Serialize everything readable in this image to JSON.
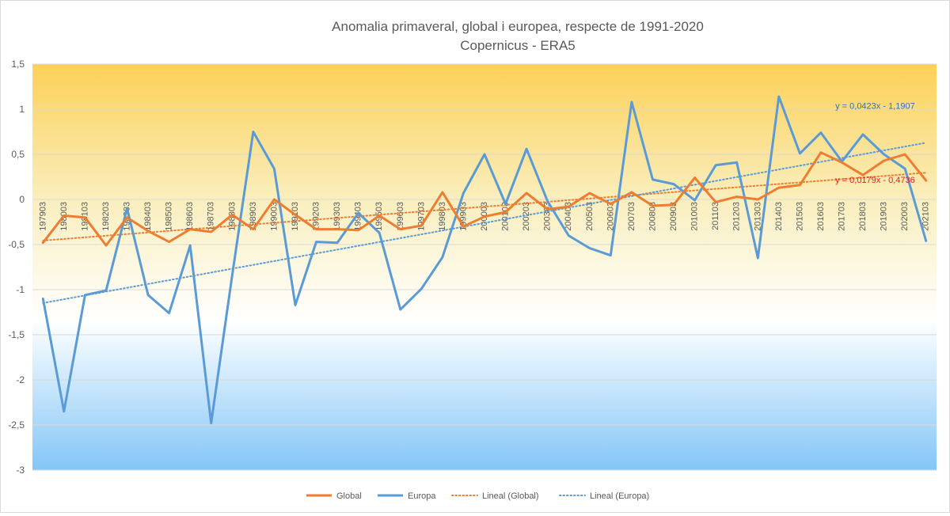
{
  "chart_data": {
    "type": "line",
    "title": "Anomalia primaveral, global i europea, respecte de 1991-2020",
    "subtitle": "Copernicus - ERA5",
    "xlabel": "",
    "ylabel": "",
    "ylim": [
      -3,
      1.5
    ],
    "y_ticks": [
      "1,5",
      "1",
      "0,5",
      "0",
      "-0,5",
      "-1",
      "-1,5",
      "-2",
      "-2,5",
      "-3"
    ],
    "grid": true,
    "legend_position": "bottom",
    "categories": [
      "197903",
      "198003",
      "198103",
      "198203",
      "198303",
      "198403",
      "198503",
      "198603",
      "198703",
      "198803",
      "198903",
      "199003",
      "199103",
      "199203",
      "199303",
      "199403",
      "199503",
      "199603",
      "199703",
      "199803",
      "199903",
      "200003",
      "200103",
      "200203",
      "200303",
      "200403",
      "200503",
      "200603",
      "200703",
      "200803",
      "200903",
      "201003",
      "201103",
      "201203",
      "201303",
      "201403",
      "201503",
      "201603",
      "201703",
      "201803",
      "201903",
      "202003",
      "202103"
    ],
    "series": [
      {
        "name": "Global",
        "color": "#ed7d31",
        "values": [
          -0.48,
          -0.18,
          -0.2,
          -0.51,
          -0.2,
          -0.35,
          -0.47,
          -0.33,
          -0.36,
          -0.17,
          -0.33,
          0.0,
          -0.17,
          -0.33,
          -0.33,
          -0.34,
          -0.18,
          -0.33,
          -0.29,
          0.08,
          -0.3,
          -0.19,
          -0.14,
          0.07,
          -0.11,
          -0.08,
          0.07,
          -0.05,
          0.08,
          -0.07,
          -0.06,
          0.24,
          -0.03,
          0.03,
          0.0,
          0.13,
          0.16,
          0.52,
          0.41,
          0.27,
          0.43,
          0.5,
          0.21
        ]
      },
      {
        "name": "Europa",
        "color": "#5b9bd5",
        "values": [
          -1.1,
          -2.35,
          -1.06,
          -1.01,
          -0.1,
          -1.06,
          -1.26,
          -0.51,
          -2.48,
          -0.84,
          0.75,
          0.34,
          -1.17,
          -0.47,
          -0.48,
          -0.15,
          -0.37,
          -1.22,
          -0.99,
          -0.64,
          0.07,
          0.5,
          -0.05,
          0.56,
          -0.02,
          -0.4,
          -0.54,
          -0.62,
          1.08,
          0.22,
          0.17,
          -0.01,
          0.38,
          0.41,
          -0.65,
          1.14,
          0.51,
          0.74,
          0.42,
          0.72,
          0.5,
          0.34,
          -0.46
        ]
      }
    ],
    "trendlines": [
      {
        "name": "Lineal  (Global)",
        "color": "#ed7d31",
        "label_color": "#e0202b",
        "slope": 0.0179,
        "intercept": -0.4736,
        "equation": "y = 0,0179x - 0,4736"
      },
      {
        "name": "Lineal  (Europa)",
        "color": "#5b9bd5",
        "label_color": "#2e75b6",
        "slope": 0.0423,
        "intercept": -1.1907,
        "equation": "y = 0,0423x - 1,1907"
      }
    ]
  }
}
